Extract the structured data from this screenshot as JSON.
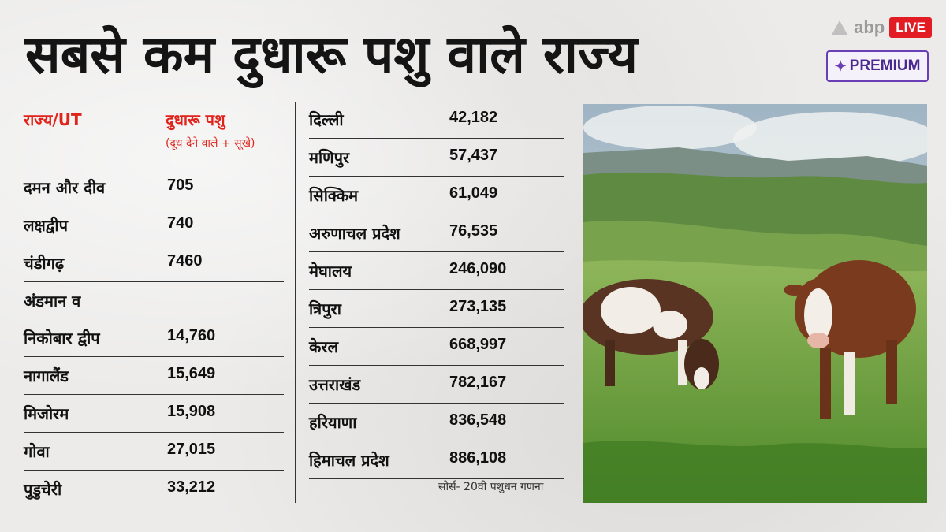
{
  "title": "सबसे कम दुधारू पशु वाले राज्य",
  "brand": {
    "name": "abp",
    "live_label": "LIVE",
    "premium_label": "PREMIUM"
  },
  "left_table": {
    "header_state": "राज्य/UT",
    "header_count": "दुधारू पशु",
    "header_sub": "(दूध देने वाले + सूखे)",
    "rows": [
      {
        "name": "दमन और दीव",
        "value": "705"
      },
      {
        "name": "लक्षद्वीप",
        "value": "740"
      },
      {
        "name": "चंडीगढ़",
        "value": "7460"
      },
      {
        "name": "अंडमान व",
        "value": ""
      },
      {
        "name": "निकोबार द्वीप",
        "value": "14,760"
      },
      {
        "name": "नागालैंड",
        "value": "15,649"
      },
      {
        "name": "मिजोरम",
        "value": "15,908"
      },
      {
        "name": "गोवा",
        "value": "27,015"
      },
      {
        "name": "पुडुचेरी",
        "value": "33,212"
      }
    ]
  },
  "right_table": {
    "rows": [
      {
        "name": "दिल्ली",
        "value": "42,182"
      },
      {
        "name": "मणिपुर",
        "value": "57,437"
      },
      {
        "name": "सिक्किम",
        "value": "61,049"
      },
      {
        "name": "अरुणाचल प्रदेश",
        "value": "76,535"
      },
      {
        "name": "मेघालय",
        "value": "246,090"
      },
      {
        "name": "त्रिपुरा",
        "value": "273,135"
      },
      {
        "name": "केरल",
        "value": "668,997"
      },
      {
        "name": "उत्तराखंड",
        "value": "782,167"
      },
      {
        "name": "हरियाणा",
        "value": "836,548"
      },
      {
        "name": "हिमाचल प्रदेश",
        "value": "886,108"
      }
    ]
  },
  "source": "सोर्स- 20वी पशुधन गणना"
}
